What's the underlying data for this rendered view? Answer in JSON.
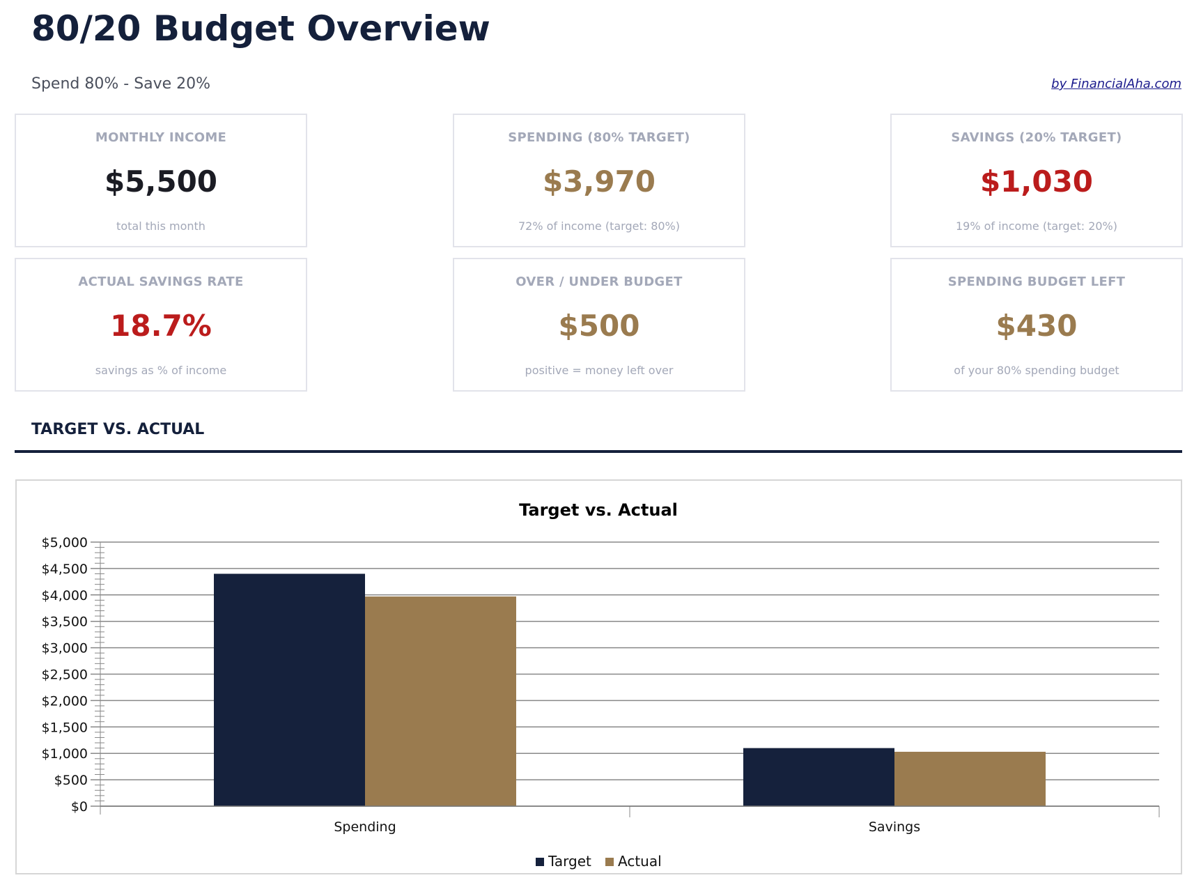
{
  "header": {
    "title": "80/20 Budget Overview",
    "subtitle": "Spend 80% - Save 20%",
    "credit": "by FinancialAha.com"
  },
  "cards": [
    {
      "label": "MONTHLY INCOME",
      "value": "$5,500",
      "sub": "total this month",
      "color": "#1b1c24"
    },
    {
      "label": "SPENDING (80% TARGET)",
      "value": "$3,970",
      "sub": "72% of income (target: 80%)",
      "color": "#9a7b4f"
    },
    {
      "label": "SAVINGS (20% TARGET)",
      "value": "$1,030",
      "sub": "19% of income (target: 20%)",
      "color": "#bb1c1c"
    },
    {
      "label": "ACTUAL SAVINGS RATE",
      "value": "18.7%",
      "sub": "savings as % of income",
      "color": "#bb1c1c"
    },
    {
      "label": "OVER / UNDER BUDGET",
      "value": "$500",
      "sub": "positive = money left over",
      "color": "#9a7b4f"
    },
    {
      "label": "SPENDING BUDGET LEFT",
      "value": "$430",
      "sub": "of your 80% spending budget",
      "color": "#9a7b4f"
    }
  ],
  "section": {
    "title": "TARGET VS. ACTUAL"
  },
  "chart_data": {
    "type": "bar",
    "title": "Target vs. Actual",
    "categories": [
      "Spending",
      "Savings"
    ],
    "series": [
      {
        "name": "Target",
        "values": [
          4400,
          1100
        ],
        "color": "#15213c"
      },
      {
        "name": "Actual",
        "values": [
          3970,
          1030
        ],
        "color": "#9a7b4f"
      }
    ],
    "ylim": [
      0,
      5000
    ],
    "yticks": [
      "$0",
      "$500",
      "$1,000",
      "$1,500",
      "$2,000",
      "$2,500",
      "$3,000",
      "$3,500",
      "$4,000",
      "$4,500",
      "$5,000"
    ],
    "grid": true,
    "legend": "bottom",
    "xlabel": "",
    "ylabel": ""
  }
}
